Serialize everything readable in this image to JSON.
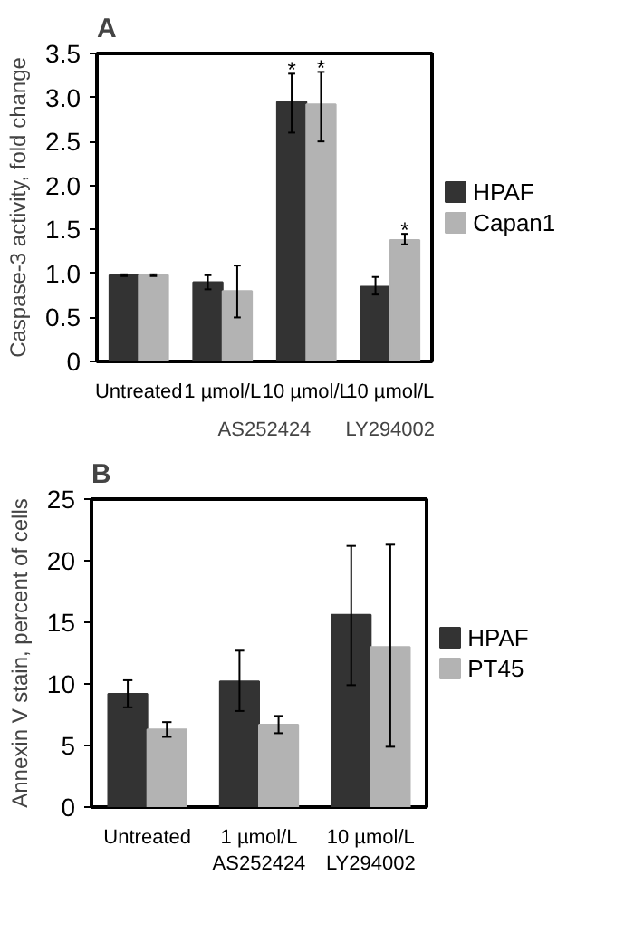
{
  "chart_data": [
    {
      "type": "bar",
      "title": "A",
      "ylabel": "Caspase-3 activity, fold change",
      "categories": [
        "Untreated",
        "1 µmol/L",
        "10 µmol/L",
        "10 µmol/L"
      ],
      "series": [
        {
          "name": "HPAF",
          "color": "#333333",
          "values": [
            0.98,
            0.9,
            2.95,
            0.85
          ],
          "errors": [
            0.01,
            [
              0.82,
              0.98
            ],
            [
              2.6,
              3.27
            ],
            [
              0.76,
              0.96
            ]
          ],
          "value_labels": [
            null,
            null,
            "*",
            null
          ]
        },
        {
          "name": "Capan1",
          "color": "#b3b3b3",
          "values": [
            0.98,
            0.8,
            2.92,
            1.38
          ],
          "errors": [
            0.01,
            [
              0.5,
              1.09
            ],
            [
              2.5,
              3.29
            ],
            [
              1.33,
              1.45
            ]
          ],
          "value_labels": [
            null,
            null,
            "*",
            "*"
          ]
        }
      ],
      "annotations": [
        "AS252424",
        "LY294002"
      ],
      "ylim": [
        0,
        3.5
      ],
      "yticks": [
        0,
        {
          "value": 0.5,
          "label": "0.5"
        },
        {
          "value": 1,
          "label": "1.0"
        },
        {
          "value": 1.5,
          "label": "1.5"
        },
        {
          "value": 2,
          "label": "2.0"
        },
        {
          "value": 2.5,
          "label": "2.5"
        },
        {
          "value": 3,
          "label": "3.0"
        },
        {
          "value": 3.5,
          "label": "3.5"
        }
      ],
      "grid": false,
      "legend": "right"
    },
    {
      "type": "bar",
      "title": "B",
      "ylabel": "Annexin V stain, percent of cells",
      "categories": [
        "Untreated",
        "1 µmol/L\nAS252424",
        "10 µmol/L\nLY294002"
      ],
      "series": [
        {
          "name": "HPAF",
          "color": "#333333",
          "values": [
            9.2,
            10.2,
            15.6
          ],
          "errors": [
            [
              8.1,
              10.3
            ],
            [
              7.8,
              12.7
            ],
            [
              9.9,
              21.2
            ]
          ]
        },
        {
          "name": "PT45",
          "color": "#b3b3b3",
          "values": [
            6.3,
            6.7,
            13.0
          ],
          "errors": [
            [
              5.7,
              6.9
            ],
            [
              6.0,
              7.4
            ],
            [
              4.9,
              21.3
            ]
          ]
        }
      ],
      "ylim": [
        0,
        25
      ],
      "yticks": [
        0,
        5,
        10,
        15,
        20,
        25
      ],
      "grid": false,
      "legend": "right"
    }
  ]
}
